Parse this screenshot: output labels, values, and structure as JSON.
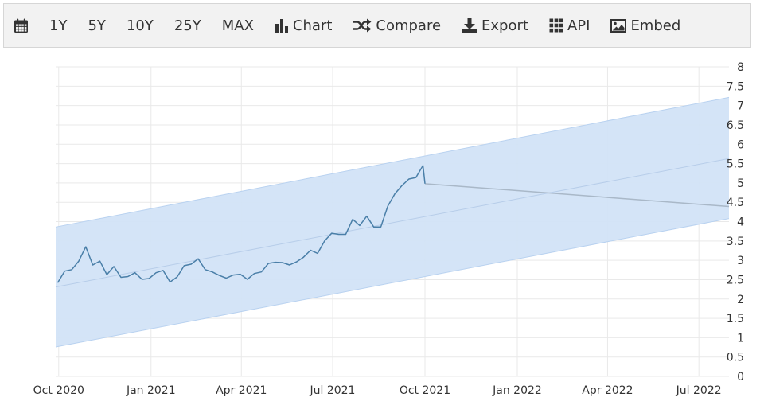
{
  "toolbar": {
    "items": [
      {
        "label": "",
        "icon": "calendar-icon"
      },
      {
        "label": "1Y"
      },
      {
        "label": "5Y"
      },
      {
        "label": "10Y"
      },
      {
        "label": "25Y"
      },
      {
        "label": "MAX"
      },
      {
        "label": "Chart",
        "icon": "bar-chart-icon"
      },
      {
        "label": "Compare",
        "icon": "shuffle-icon"
      },
      {
        "label": "Export",
        "icon": "download-icon"
      },
      {
        "label": "API",
        "icon": "grid-icon"
      },
      {
        "label": "Embed",
        "icon": "image-icon"
      }
    ]
  },
  "colors": {
    "series": "#4a7fa8",
    "forecast": "#a9b8c8",
    "band_fill": "#d2e3f7",
    "band_edge": "#b9d2f0",
    "trend": "#b7cde9",
    "grid": "#e9e9e9"
  },
  "chart_data": {
    "type": "line",
    "x_ticks": [
      "Oct 2020",
      "Jan 2021",
      "Apr 2021",
      "Jul 2021",
      "Oct 2021",
      "Jan 2022",
      "Apr 2022",
      "Jul 2022"
    ],
    "y_ticks": [
      "0",
      "0.5",
      "1",
      "1.5",
      "2",
      "2.5",
      "3",
      "3.5",
      "4",
      "4.5",
      "5",
      "5.5",
      "6",
      "6.5",
      "7",
      "7.5",
      "8"
    ],
    "ylim": [
      0,
      8
    ],
    "xlim": [
      "2020-09-28",
      "2022-07-31"
    ],
    "y_axis_position": "right",
    "grid": true,
    "series": [
      {
        "x": [
          "2020-09-30",
          "2020-10-07",
          "2020-10-14",
          "2020-10-21",
          "2020-10-28",
          "2020-11-04",
          "2020-11-11",
          "2020-11-18",
          "2020-11-25",
          "2020-12-02",
          "2020-12-09",
          "2020-12-16",
          "2020-12-23",
          "2020-12-30",
          "2021-01-06",
          "2021-01-13",
          "2021-01-20",
          "2021-01-27",
          "2021-02-03",
          "2021-02-10",
          "2021-02-17",
          "2021-02-24",
          "2021-03-03",
          "2021-03-10",
          "2021-03-17",
          "2021-03-24",
          "2021-03-31",
          "2021-04-07",
          "2021-04-14",
          "2021-04-21",
          "2021-04-28",
          "2021-05-05",
          "2021-05-12",
          "2021-05-19",
          "2021-05-26",
          "2021-06-02",
          "2021-06-09",
          "2021-06-16",
          "2021-06-23",
          "2021-06-30",
          "2021-07-07",
          "2021-07-14",
          "2021-07-21",
          "2021-07-28",
          "2021-08-04",
          "2021-08-11",
          "2021-08-18",
          "2021-08-25",
          "2021-09-01",
          "2021-09-08",
          "2021-09-15",
          "2021-09-22",
          "2021-09-29",
          "2021-10-01"
        ],
        "y": [
          2.42,
          2.72,
          2.76,
          2.98,
          3.35,
          2.88,
          2.98,
          2.63,
          2.84,
          2.56,
          2.58,
          2.68,
          2.51,
          2.53,
          2.68,
          2.74,
          2.44,
          2.57,
          2.86,
          2.9,
          3.04,
          2.76,
          2.7,
          2.61,
          2.54,
          2.62,
          2.64,
          2.51,
          2.66,
          2.7,
          2.92,
          2.95,
          2.94,
          2.88,
          2.96,
          3.08,
          3.26,
          3.18,
          3.5,
          3.7,
          3.67,
          3.67,
          4.06,
          3.9,
          4.14,
          3.86,
          3.86,
          4.4,
          4.72,
          4.93,
          5.1,
          5.14,
          5.45,
          4.98
        ]
      }
    ],
    "forecast": {
      "x": [
        "2021-10-01",
        "2022-07-31"
      ],
      "y": [
        4.98,
        4.39
      ]
    },
    "trend_band": {
      "x": [
        "2020-09-28",
        "2022-07-31"
      ],
      "lower": [
        0.76,
        4.08
      ],
      "center": [
        2.31,
        5.63
      ],
      "upper": [
        3.86,
        7.21
      ]
    }
  }
}
